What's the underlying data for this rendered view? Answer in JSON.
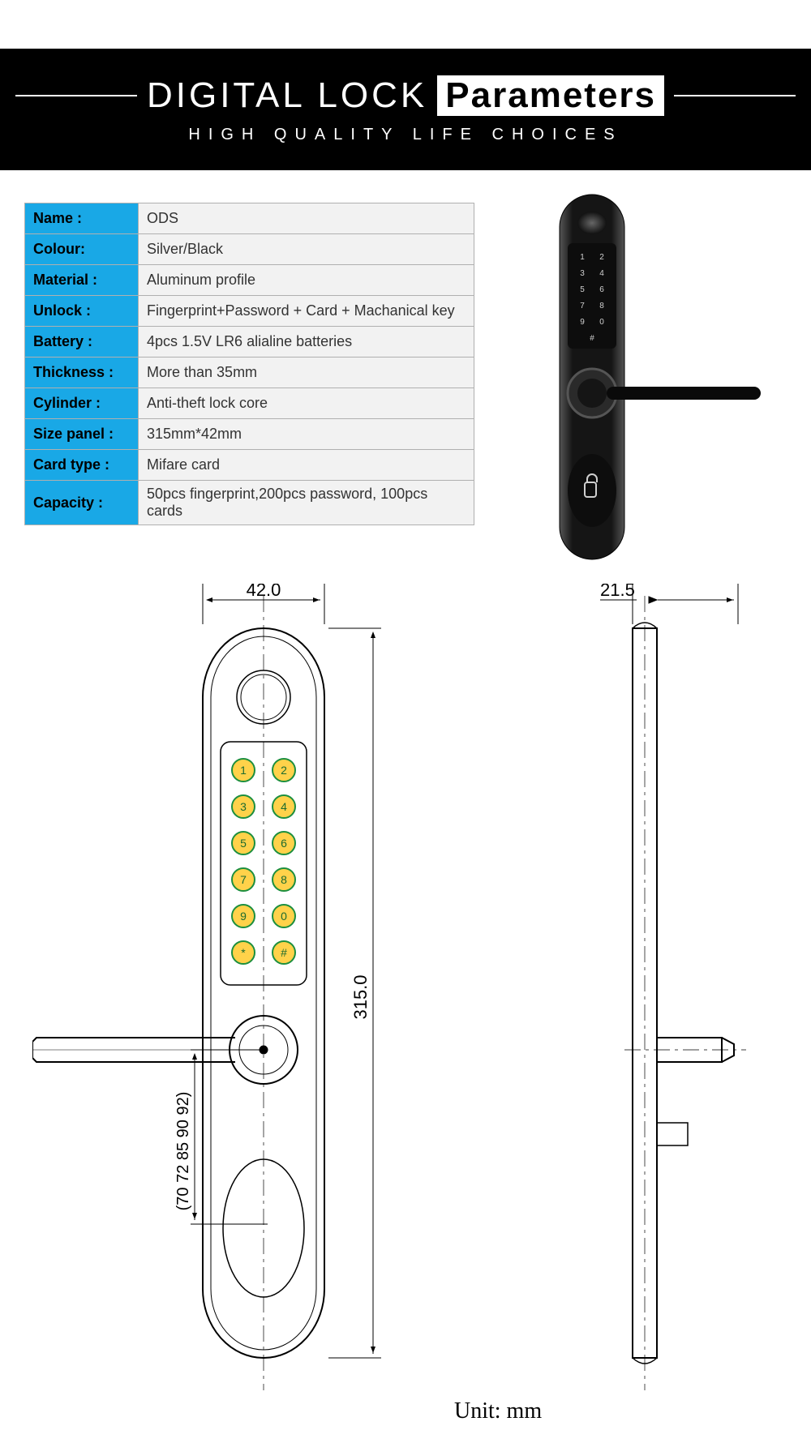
{
  "header": {
    "title_primary": "DIGITAL LOCK",
    "title_secondary": "Parameters",
    "subtitle": "HIGH QUALITY LIFE CHOICES",
    "band_bg": "#000000",
    "text_color": "#ffffff",
    "accent_bg": "#ffffff",
    "accent_fg": "#000000"
  },
  "spec_table": {
    "label_bg": "#19a8e6",
    "value_bg": "#f2f2f2",
    "border_color": "#b0b0b0",
    "rows": [
      {
        "label": "Name :",
        "value": "ODS"
      },
      {
        "label": "Colour:",
        "value": "Silver/Black"
      },
      {
        "label": "Material :",
        "value": "Aluminum profile"
      },
      {
        "label": "Unlock :",
        "value": "Fingerprint+Password + Card + Machanical key"
      },
      {
        "label": "Battery :",
        "value": "4pcs 1.5V LR6 alialine batteries"
      },
      {
        "label": "Thickness :",
        "value": "More than 35mm"
      },
      {
        "label": "Cylinder :",
        "value": "Anti-theft lock core"
      },
      {
        "label": "Size panel :",
        "value": "315mm*42mm"
      },
      {
        "label": "Card type :",
        "value": "Mifare card"
      },
      {
        "label": "Capacity :",
        "value": "50pcs fingerprint,200pcs password, 100pcs cards"
      }
    ]
  },
  "product_illustration": {
    "body_color": "#1a1a1a",
    "handle_color": "#0a0a0a",
    "keypad_digits": [
      "1",
      "2",
      "3",
      "4",
      "5",
      "6",
      "7",
      "8",
      "9",
      "0",
      "#"
    ],
    "keypad_text_color": "#cfcfcf"
  },
  "technical_drawing": {
    "unit_label": "Unit: mm",
    "stroke_color": "#000000",
    "keypad_button_fill": "#ffd24a",
    "keypad_button_stroke": "#1c8f3e",
    "dimensions": {
      "front_width": "42.0",
      "side_width": "21.5",
      "height": "315.0",
      "spindle_options": "(70 72 85 90 92)"
    },
    "keypad_numbers": [
      "1",
      "2",
      "3",
      "4",
      "5",
      "6",
      "7",
      "8",
      "9",
      "0",
      "*",
      "#"
    ]
  }
}
